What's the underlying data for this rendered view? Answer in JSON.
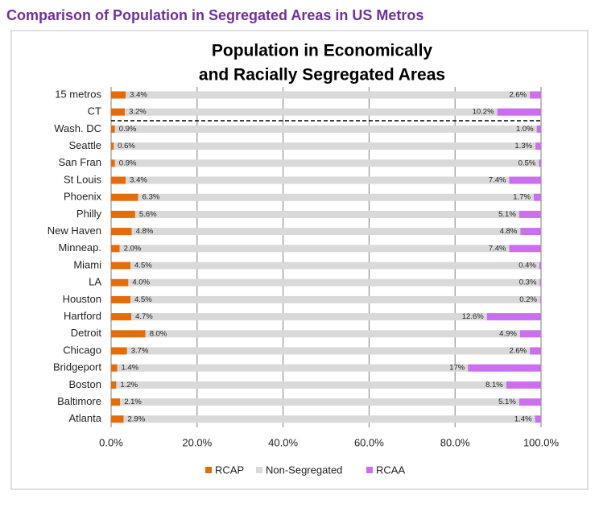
{
  "header": {
    "title": "Comparison of Population in Segregated Areas in US Metros"
  },
  "chart_data": {
    "type": "bar",
    "title": [
      "Population in Economically",
      "and Racially Segregated Areas"
    ],
    "orientation": "horizontal",
    "stacked": true,
    "categories": [
      "15 metros",
      "CT",
      "Wash. DC",
      "Seattle",
      "San Fran",
      "St Louis",
      "Phoenix",
      "Philly",
      "New Haven",
      "Minneap.",
      "Miami",
      "LA",
      "Houston",
      "Hartford",
      "Detroit",
      "Chicago",
      "Bridgeport",
      "Boston",
      "Baltimore",
      "Atlanta"
    ],
    "series": [
      {
        "name": "RCAP",
        "color": "#e46c0a",
        "values": [
          3.4,
          3.2,
          0.9,
          0.6,
          0.9,
          3.4,
          6.3,
          5.6,
          4.8,
          2.0,
          4.5,
          4.0,
          4.5,
          4.7,
          8.0,
          3.7,
          1.4,
          1.2,
          2.1,
          2.9
        ],
        "value_labels": [
          "3.4%",
          "3.2%",
          "0.9%",
          "0.6%",
          "0.9%",
          "3.4%",
          "6.3%",
          "5.6%",
          "4.8%",
          "2.0%",
          "4.5%",
          "4.0%",
          "4.5%",
          "4.7%",
          "8.0%",
          "3.7%",
          "1.4%",
          "1.2%",
          "2.1%",
          "2.9%"
        ]
      },
      {
        "name": "Non-Segregated",
        "color": "#d9d9d9",
        "values": [
          94.0,
          86.6,
          98.1,
          98.1,
          98.6,
          89.2,
          92.0,
          89.3,
          90.4,
          90.6,
          95.1,
          95.7,
          95.3,
          82.7,
          87.1,
          93.7,
          81.6,
          90.7,
          92.8,
          95.7
        ]
      },
      {
        "name": "RCAA",
        "color": "#cc6fef",
        "values": [
          2.6,
          10.2,
          1.0,
          1.3,
          0.5,
          7.4,
          1.7,
          5.1,
          4.8,
          7.4,
          0.4,
          0.3,
          0.2,
          12.6,
          4.9,
          2.6,
          17,
          8.1,
          5.1,
          1.4
        ],
        "value_labels": [
          "2.6%",
          "10.2%",
          "1.0%",
          "1.3%",
          "0.5%",
          "7.4%",
          "1.7%",
          "5.1%",
          "4.8%",
          "7.4%",
          "0.4%",
          "0.3%",
          "0.2%",
          "12.6%",
          "4.9%",
          "2.6%",
          "17%",
          "8.1%",
          "5.1%",
          "1.4%"
        ]
      }
    ],
    "xlim": [
      0,
      100
    ],
    "xticks": [
      {
        "value": 0,
        "label": "0.0%"
      },
      {
        "value": 20,
        "label": "20.0%"
      },
      {
        "value": 40,
        "label": "40.0%"
      },
      {
        "value": 60,
        "label": "60.0%"
      },
      {
        "value": 80,
        "label": "80.0%"
      },
      {
        "value": 100,
        "label": "100.0%"
      }
    ],
    "grid": true,
    "legend": "bottom"
  }
}
